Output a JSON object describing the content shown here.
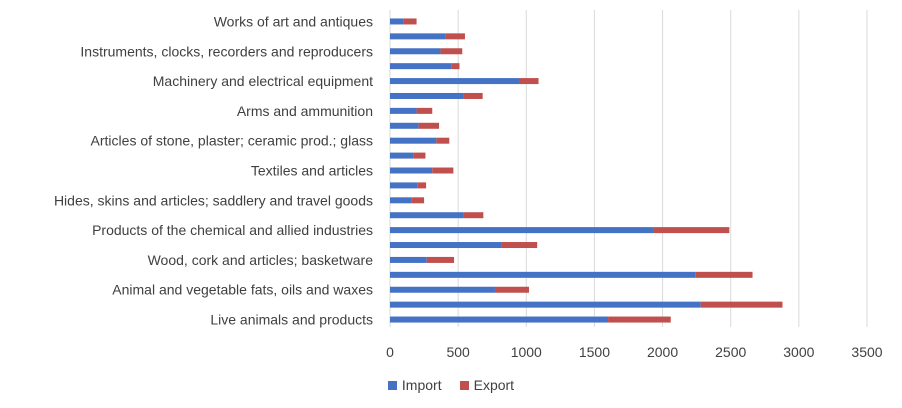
{
  "chart_data": {
    "type": "bar",
    "orientation": "horizontal",
    "stacked": true,
    "categories": [
      "Works of art and antiques",
      "",
      "Instruments, clocks, recorders and reproducers",
      "",
      "Machinery and electrical equipment",
      "",
      "Arms and ammunition",
      "",
      "Articles of stone, plaster; ceramic prod.; glass",
      "",
      "Textiles and articles",
      "",
      "Hides, skins and articles; saddlery and travel goods",
      "",
      "Products of the chemical and allied industries",
      "",
      "Wood, cork and articles; basketware",
      "",
      "Animal and vegetable fats, oils and waxes",
      "",
      "Live animals and products"
    ],
    "series": [
      {
        "name": "Import",
        "color": "#4472c4",
        "values": [
          100,
          410,
          370,
          450,
          950,
          540,
          195,
          210,
          340,
          175,
          310,
          200,
          155,
          540,
          1930,
          815,
          270,
          2240,
          770,
          2280,
          1600
        ]
      },
      {
        "name": "Export",
        "color": "#c0504d",
        "values": [
          95,
          140,
          160,
          60,
          140,
          140,
          115,
          150,
          95,
          85,
          155,
          65,
          95,
          145,
          560,
          265,
          200,
          420,
          250,
          600,
          460
        ]
      }
    ],
    "xlim": [
      0,
      3500
    ],
    "xticks": [
      "0",
      "500",
      "1000",
      "1500",
      "2000",
      "2500",
      "3000",
      "3500"
    ],
    "title": "",
    "xlabel": "",
    "ylabel": "",
    "grid": "vertical-major",
    "legend_position": "bottom"
  }
}
